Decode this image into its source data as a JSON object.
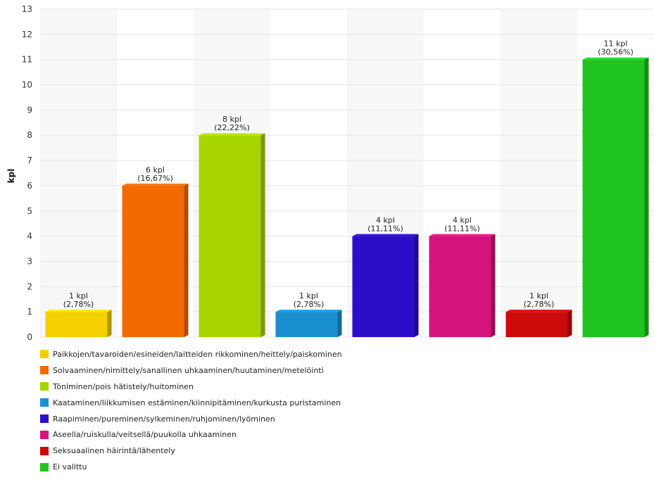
{
  "chart_data": {
    "type": "bar",
    "ylabel": "kpl",
    "ylim": [
      0,
      13
    ],
    "yticks": [
      "0",
      "1",
      "2",
      "3",
      "4",
      "5",
      "6",
      "7",
      "8",
      "9",
      "10",
      "11",
      "12",
      "13"
    ],
    "grid": true,
    "legend_position": "bottom",
    "categories": [
      "Paikkojen/tavaroiden/esineiden/laitteiden rikkominen/heittely/paiskominen",
      "Solvaaminen/nimittely/sanallinen uhkaaminen/huutaminen/metelöinti",
      "Töniminen/pois hätistely/huitominen",
      "Kaataminen/liikkumisen estäminen/kiinnipitäminen/kurkusta puristaminen",
      "Raapiminen/pureminen/sylkeminen/ruhjominen/lyöminen",
      "Aseella/ruiskulla/veitsellä/puukolla uhkaaminen",
      "Seksuaalinen häirintä/lähentely",
      "Ei valittu"
    ],
    "values": [
      1,
      6,
      8,
      1,
      4,
      4,
      1,
      11
    ],
    "value_labels": [
      "1 kpl",
      "6 kpl",
      "8 kpl",
      "1 kpl",
      "4 kpl",
      "4 kpl",
      "1 kpl",
      "11 kpl"
    ],
    "percent_labels": [
      "(2,78%)",
      "(16,67%)",
      "(22,22%)",
      "(2,78%)",
      "(11,11%)",
      "(11,11%)",
      "(2,78%)",
      "(30,56%)"
    ],
    "colors": [
      "#f5d000",
      "#f26a00",
      "#a8d400",
      "#1a8fd0",
      "#2b0fc8",
      "#d4147c",
      "#cc0b0b",
      "#1fc41f"
    ]
  }
}
